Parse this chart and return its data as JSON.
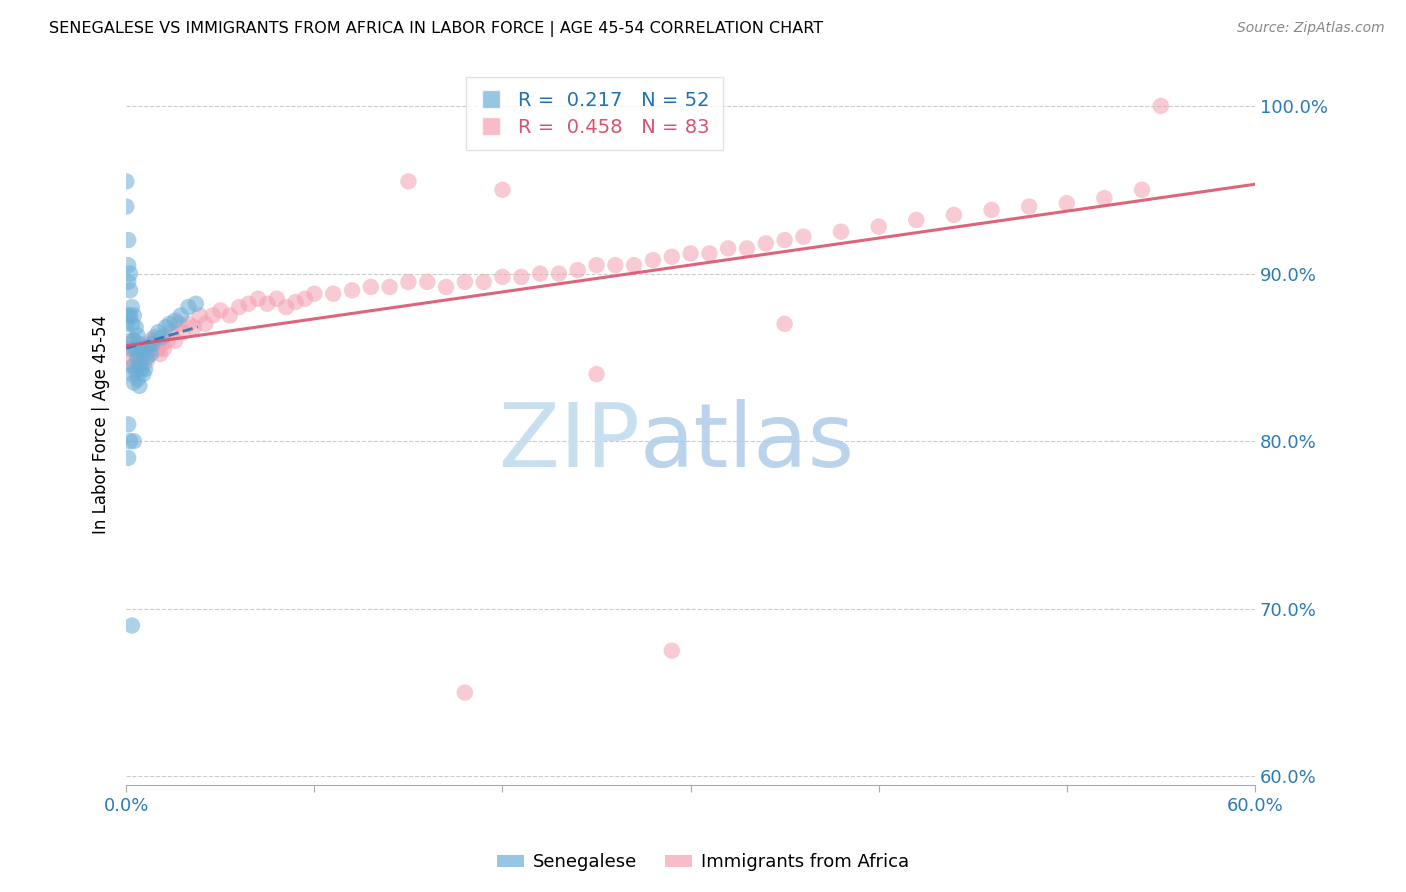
{
  "title": "SENEGALESE VS IMMIGRANTS FROM AFRICA IN LABOR FORCE | AGE 45-54 CORRELATION CHART",
  "source": "Source: ZipAtlas.com",
  "ylabel": "In Labor Force | Age 45-54",
  "x_min": 0.0,
  "x_max": 0.6,
  "y_min": 0.595,
  "y_max": 1.025,
  "x_ticks": [
    0.0,
    0.1,
    0.2,
    0.3,
    0.4,
    0.5,
    0.6
  ],
  "x_tick_labels": [
    "0.0%",
    "",
    "",
    "",
    "",
    "",
    "60.0%"
  ],
  "y_ticks": [
    0.6,
    0.7,
    0.8,
    0.9,
    1.0
  ],
  "y_tick_labels": [
    "60.0%",
    "70.0%",
    "80.0%",
    "90.0%",
    "100.0%"
  ],
  "legend1_label": "R =  0.217   N = 52",
  "legend2_label": "R =  0.458   N = 83",
  "legend1_color": "#6baed6",
  "legend2_color": "#f4a0b0",
  "trendline1_color": "#2171b5",
  "trendline2_color": "#d9546e",
  "watermark_zip_color": "#c8dff0",
  "watermark_atlas_color": "#b0cce8",
  "senegalese_x": [
    0.0,
    0.0,
    0.0,
    0.001,
    0.001,
    0.001,
    0.001,
    0.002,
    0.002,
    0.002,
    0.002,
    0.003,
    0.003,
    0.003,
    0.003,
    0.004,
    0.004,
    0.004,
    0.004,
    0.005,
    0.005,
    0.005,
    0.006,
    0.006,
    0.006,
    0.007,
    0.007,
    0.007,
    0.008,
    0.008,
    0.009,
    0.009,
    0.01,
    0.01,
    0.011,
    0.012,
    0.013,
    0.014,
    0.015,
    0.017,
    0.019,
    0.021,
    0.023,
    0.026,
    0.029,
    0.033,
    0.037,
    0.001,
    0.002,
    0.004,
    0.003,
    0.001
  ],
  "senegalese_y": [
    0.955,
    0.94,
    0.87,
    0.92,
    0.905,
    0.895,
    0.875,
    0.9,
    0.89,
    0.875,
    0.86,
    0.88,
    0.87,
    0.855,
    0.84,
    0.875,
    0.86,
    0.845,
    0.835,
    0.868,
    0.855,
    0.842,
    0.863,
    0.85,
    0.837,
    0.858,
    0.845,
    0.833,
    0.855,
    0.843,
    0.852,
    0.84,
    0.855,
    0.843,
    0.85,
    0.857,
    0.852,
    0.858,
    0.862,
    0.865,
    0.862,
    0.868,
    0.87,
    0.872,
    0.875,
    0.88,
    0.882,
    0.79,
    0.8,
    0.8,
    0.69,
    0.81
  ],
  "africa_x": [
    0.001,
    0.002,
    0.003,
    0.004,
    0.005,
    0.006,
    0.007,
    0.008,
    0.009,
    0.01,
    0.011,
    0.012,
    0.013,
    0.014,
    0.015,
    0.016,
    0.017,
    0.018,
    0.019,
    0.02,
    0.022,
    0.024,
    0.026,
    0.028,
    0.03,
    0.033,
    0.036,
    0.039,
    0.042,
    0.046,
    0.05,
    0.055,
    0.06,
    0.065,
    0.07,
    0.075,
    0.08,
    0.085,
    0.09,
    0.095,
    0.1,
    0.11,
    0.12,
    0.13,
    0.14,
    0.15,
    0.16,
    0.17,
    0.18,
    0.19,
    0.2,
    0.21,
    0.22,
    0.23,
    0.24,
    0.25,
    0.26,
    0.27,
    0.28,
    0.29,
    0.3,
    0.31,
    0.32,
    0.33,
    0.34,
    0.35,
    0.36,
    0.38,
    0.4,
    0.42,
    0.44,
    0.46,
    0.48,
    0.5,
    0.52,
    0.54,
    0.2,
    0.15,
    0.25,
    0.35,
    0.55,
    0.29,
    0.18
  ],
  "africa_y": [
    0.855,
    0.85,
    0.845,
    0.86,
    0.855,
    0.85,
    0.848,
    0.845,
    0.855,
    0.852,
    0.848,
    0.855,
    0.86,
    0.855,
    0.86,
    0.858,
    0.855,
    0.852,
    0.858,
    0.855,
    0.86,
    0.865,
    0.86,
    0.87,
    0.865,
    0.87,
    0.868,
    0.875,
    0.87,
    0.875,
    0.878,
    0.875,
    0.88,
    0.882,
    0.885,
    0.882,
    0.885,
    0.88,
    0.883,
    0.885,
    0.888,
    0.888,
    0.89,
    0.892,
    0.892,
    0.895,
    0.895,
    0.892,
    0.895,
    0.895,
    0.898,
    0.898,
    0.9,
    0.9,
    0.902,
    0.905,
    0.905,
    0.905,
    0.908,
    0.91,
    0.912,
    0.912,
    0.915,
    0.915,
    0.918,
    0.92,
    0.922,
    0.925,
    0.928,
    0.932,
    0.935,
    0.938,
    0.94,
    0.942,
    0.945,
    0.95,
    0.95,
    0.955,
    0.84,
    0.87,
    1.0,
    0.675,
    0.65
  ]
}
